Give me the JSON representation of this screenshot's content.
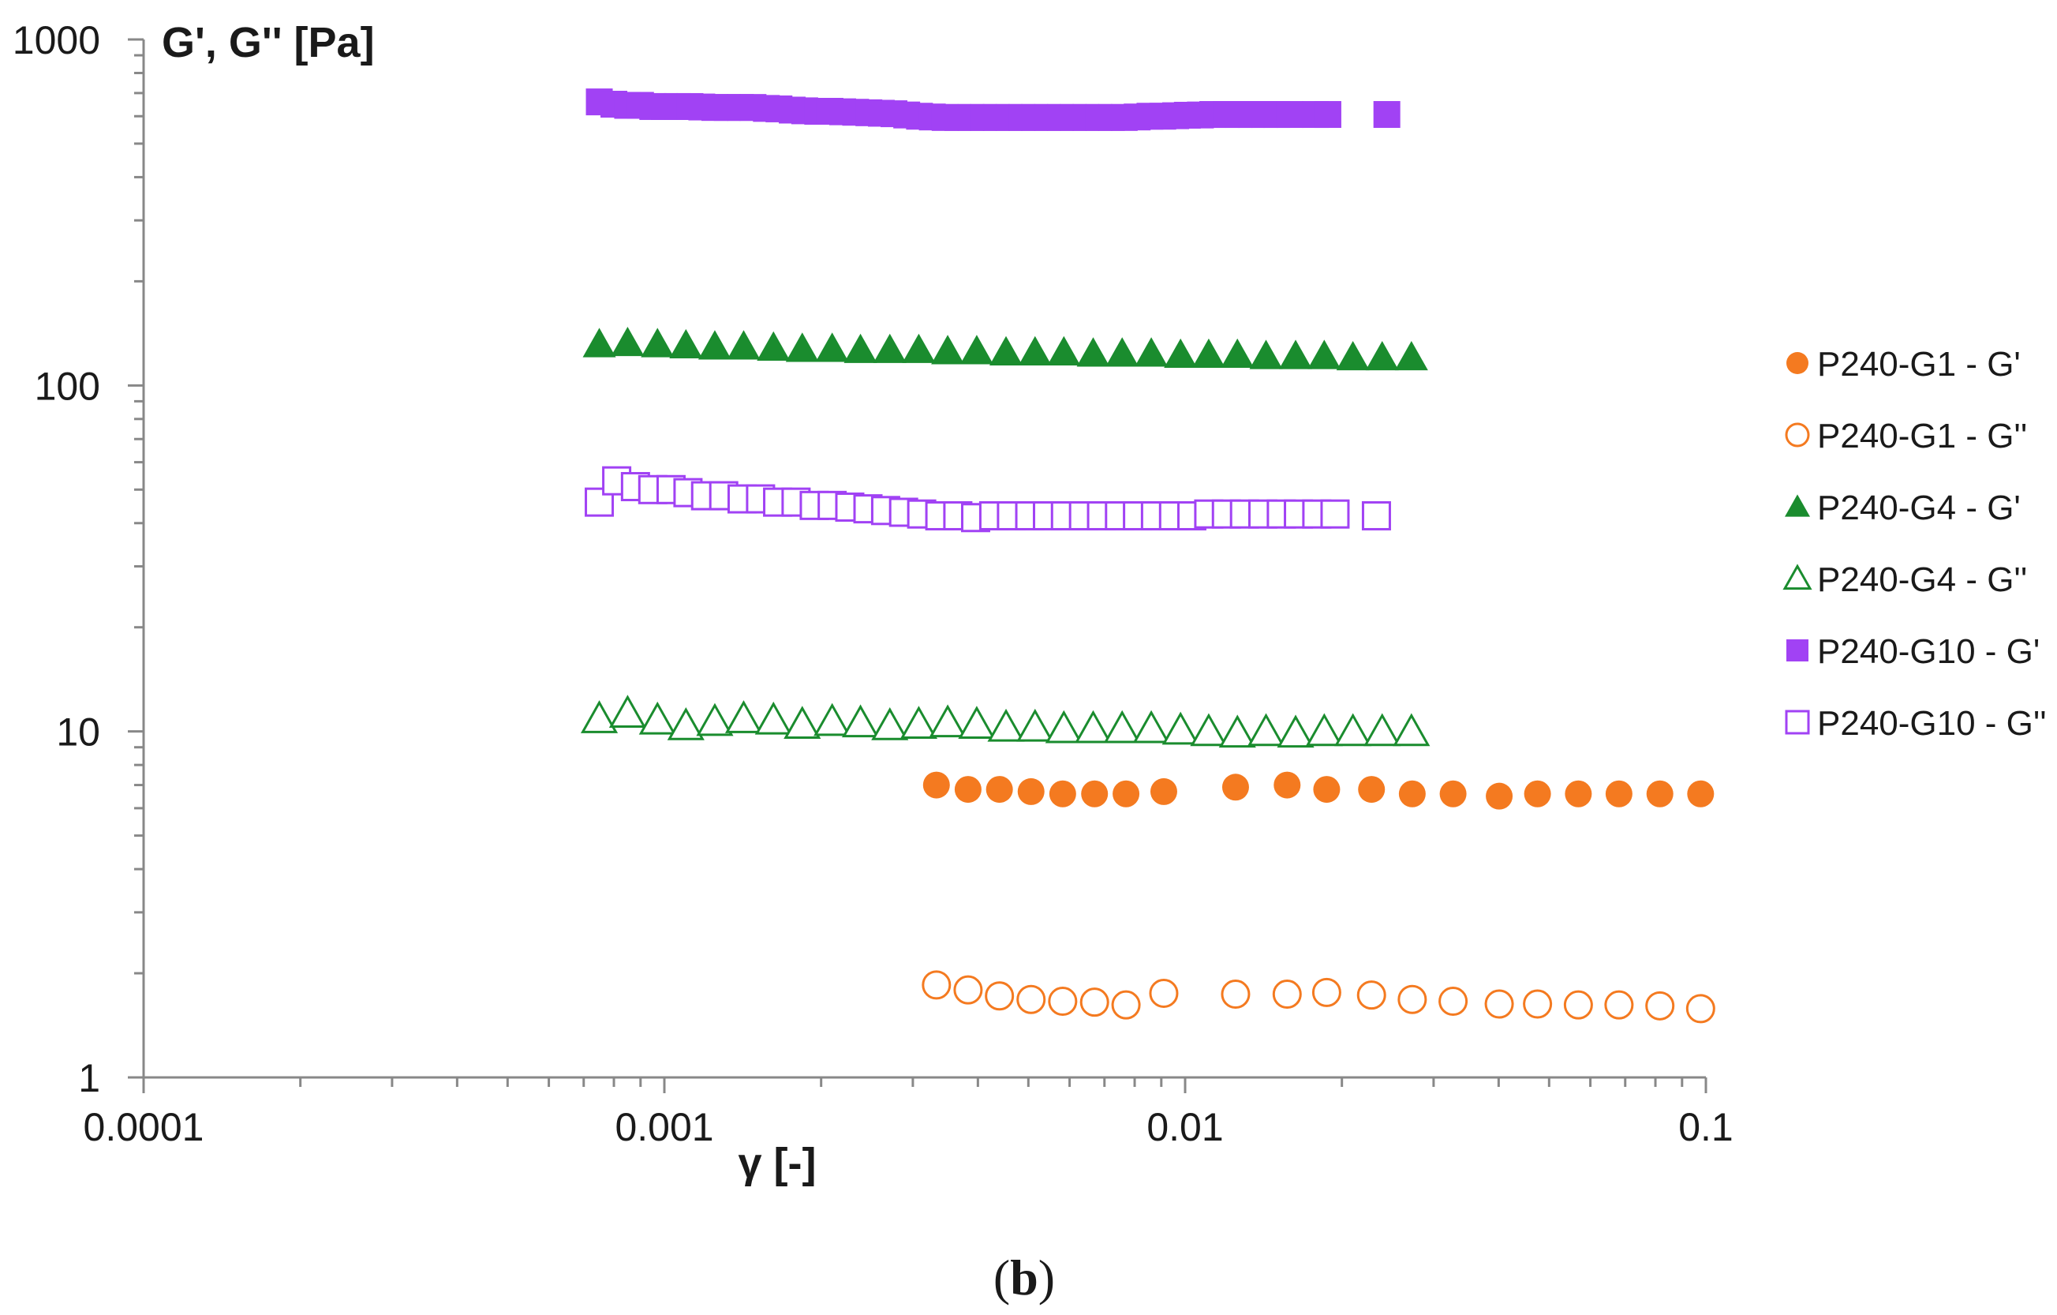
{
  "chart_data": {
    "type": "scatter",
    "caption": "(b)",
    "xlabel": "γ [-]",
    "ylabel": "G', G'' [Pa]",
    "xscale": "log",
    "yscale": "log",
    "xlim": [
      0.0001,
      0.1
    ],
    "ylim": [
      1,
      1000
    ],
    "grid": false,
    "legend_position": "right",
    "x_tick_labels": [
      "0.0001",
      "0.001",
      "0.01",
      "0.1"
    ],
    "y_tick_labels": [
      "1",
      "10",
      "100",
      "1000"
    ],
    "series": [
      {
        "name": "P240-G1 - G'",
        "marker": "circle",
        "filled": true,
        "color": "#f47a20",
        "x": [
          0.00333,
          0.00383,
          0.0044,
          0.00506,
          0.00582,
          0.0067,
          0.0077,
          0.0091,
          0.0125,
          0.0157,
          0.0187,
          0.0228,
          0.0273,
          0.0327,
          0.0401,
          0.0475,
          0.0569,
          0.0681,
          0.0816,
          0.0977
        ],
        "y": [
          7.0,
          6.8,
          6.8,
          6.7,
          6.6,
          6.6,
          6.6,
          6.7,
          6.9,
          7.0,
          6.8,
          6.8,
          6.6,
          6.6,
          6.5,
          6.6,
          6.6,
          6.6,
          6.6,
          6.6
        ]
      },
      {
        "name": "P240-G1 - G''",
        "marker": "circle",
        "filled": false,
        "color": "#f47a20",
        "x": [
          0.00333,
          0.00383,
          0.0044,
          0.00506,
          0.00582,
          0.0067,
          0.0077,
          0.0091,
          0.0125,
          0.0157,
          0.0187,
          0.0228,
          0.0273,
          0.0327,
          0.0401,
          0.0475,
          0.0569,
          0.0681,
          0.0816,
          0.0977
        ],
        "y": [
          1.85,
          1.79,
          1.72,
          1.68,
          1.66,
          1.65,
          1.62,
          1.75,
          1.74,
          1.74,
          1.76,
          1.73,
          1.68,
          1.66,
          1.63,
          1.63,
          1.62,
          1.62,
          1.61,
          1.58
        ]
      },
      {
        "name": "P240-G4 - G'",
        "marker": "triangle",
        "filled": true,
        "color": "#1a8c2e",
        "x": [
          0.00075,
          0.00085,
          0.00097,
          0.0011,
          0.00125,
          0.00142,
          0.00162,
          0.00184,
          0.0021,
          0.00238,
          0.00271,
          0.00308,
          0.0035,
          0.00398,
          0.00453,
          0.00515,
          0.00585,
          0.00666,
          0.00757,
          0.00861,
          0.0098,
          0.0111,
          0.0126,
          0.0143,
          0.0163,
          0.0185,
          0.021,
          0.0239,
          0.0272
        ],
        "y": [
          132,
          133,
          132,
          131,
          130,
          130,
          129,
          128,
          128,
          127,
          127,
          127,
          126,
          126,
          125,
          125,
          125,
          124,
          124,
          124,
          123,
          123,
          123,
          122,
          122,
          122,
          121,
          121,
          121
        ]
      },
      {
        "name": "P240-G4 - G''",
        "marker": "triangle",
        "filled": false,
        "color": "#1a8c2e",
        "x": [
          0.00075,
          0.00085,
          0.00097,
          0.0011,
          0.00125,
          0.00142,
          0.00162,
          0.00184,
          0.0021,
          0.00238,
          0.00271,
          0.00308,
          0.0035,
          0.00398,
          0.00453,
          0.00515,
          0.00585,
          0.00666,
          0.00757,
          0.00861,
          0.0098,
          0.0111,
          0.0126,
          0.0143,
          0.0163,
          0.0185,
          0.021,
          0.0239,
          0.0272
        ],
        "y": [
          10.9,
          11.3,
          10.8,
          10.4,
          10.7,
          10.9,
          10.8,
          10.5,
          10.7,
          10.6,
          10.4,
          10.5,
          10.6,
          10.5,
          10.3,
          10.3,
          10.2,
          10.2,
          10.2,
          10.2,
          10.1,
          10.0,
          9.9,
          10.0,
          9.9,
          10.0,
          10.0,
          10.0,
          10.0
        ]
      },
      {
        "name": "P240-G10 - G'",
        "marker": "square",
        "filled": true,
        "color": "#a142f4",
        "x": [
          0.00075,
          0.0008,
          0.00085,
          0.0009,
          0.00095,
          0.001,
          0.00106,
          0.00112,
          0.00118,
          0.00125,
          0.00132,
          0.0014,
          0.00148,
          0.00157,
          0.00166,
          0.00176,
          0.00186,
          0.00197,
          0.00208,
          0.0022,
          0.00233,
          0.00247,
          0.00261,
          0.00276,
          0.00292,
          0.00309,
          0.00327,
          0.00346,
          0.00366,
          0.00388,
          0.0041,
          0.00434,
          0.00459,
          0.00486,
          0.00514,
          0.00544,
          0.00576,
          0.0061,
          0.00645,
          0.00683,
          0.00722,
          0.00764,
          0.00809,
          0.00856,
          0.00906,
          0.00959,
          0.0101,
          0.0107,
          0.0113,
          0.012,
          0.0127,
          0.0134,
          0.0142,
          0.015,
          0.0159,
          0.0178,
          0.0188,
          0.0244
        ],
        "y": [
          660,
          650,
          645,
          645,
          640,
          640,
          640,
          640,
          638,
          636,
          636,
          636,
          636,
          632,
          630,
          625,
          622,
          620,
          620,
          618,
          616,
          614,
          612,
          610,
          605,
          600,
          597,
          595,
          595,
          595,
          595,
          595,
          595,
          595,
          595,
          595,
          595,
          595,
          595,
          595,
          595,
          595,
          597,
          600,
          600,
          602,
          604,
          605,
          607,
          607,
          607,
          607,
          607,
          607,
          607,
          607,
          607,
          607
        ]
      },
      {
        "name": "P240-G10 - G''",
        "marker": "square",
        "filled": false,
        "color": "#a142f4",
        "x": [
          0.00075,
          0.00081,
          0.00088,
          0.00095,
          0.00103,
          0.00111,
          0.0012,
          0.0013,
          0.00141,
          0.00153,
          0.00165,
          0.00179,
          0.00194,
          0.0021,
          0.00227,
          0.00246,
          0.00266,
          0.00288,
          0.00312,
          0.00338,
          0.00366,
          0.00396,
          0.00429,
          0.00464,
          0.00503,
          0.00544,
          0.00589,
          0.00638,
          0.00691,
          0.00748,
          0.0081,
          0.00877,
          0.0095,
          0.0103,
          0.0111,
          0.012,
          0.013,
          0.0141,
          0.0153,
          0.0165,
          0.0179,
          0.0194,
          0.0233
        ],
        "y": [
          46,
          53,
          51,
          50,
          50,
          49,
          48,
          48,
          47,
          47,
          46,
          46,
          45,
          45,
          44.5,
          44,
          43.5,
          43,
          42.5,
          42,
          42,
          41.5,
          42,
          42,
          42,
          42,
          42,
          42,
          42,
          42,
          42,
          42,
          42,
          42,
          42.5,
          42.5,
          42.5,
          42.5,
          42.5,
          42.5,
          42.5,
          42.5,
          42
        ]
      }
    ]
  }
}
